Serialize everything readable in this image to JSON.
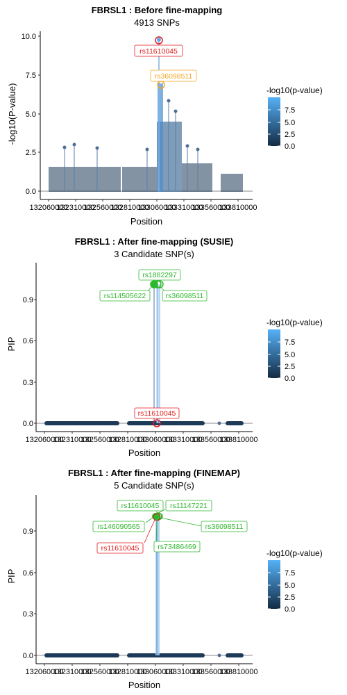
{
  "chart_data": [
    {
      "type": "scatter",
      "title": "FBRSL1 : Before fine-mapping",
      "subtitle": "4913 SNPs",
      "xlabel": "Position",
      "ylabel": "-log10(P-value)",
      "xticks": [
        "132060000",
        "132310000",
        "132560000",
        "132810000",
        "133060000",
        "133310000",
        "133560000",
        "133810000"
      ],
      "yticks": [
        "0.0",
        "2.5",
        "5.0",
        "7.5",
        "10.0"
      ],
      "ylim": [
        -0.3,
        10.4
      ],
      "legend": {
        "title": "-log10(p-value)",
        "ticks": [
          "0.0",
          "2.5",
          "5.0",
          "7.5"
        ],
        "position": "right",
        "colors": [
          "#132B43",
          "#56B1F7"
        ]
      },
      "highlight_points": [
        {
          "name": "rs11610045",
          "x": 133060000,
          "y": 9.8,
          "color": "#e31a1c"
        },
        {
          "name": "rs36098511",
          "x": 133065000,
          "y": 6.9,
          "color": "#f5a623"
        }
      ]
    },
    {
      "type": "scatter",
      "title": "FBRSL1 : After fine-mapping (SUSIE)",
      "subtitle": "3 Candidate SNP(s)",
      "xlabel": "Position",
      "ylabel": "PIP",
      "xticks": [
        "132060000",
        "132310000",
        "132560000",
        "132810000",
        "133060000",
        "133310000",
        "133560000",
        "133810000"
      ],
      "yticks": [
        "0.0",
        "0.3",
        "0.6",
        "0.9"
      ],
      "ylim": [
        -0.04,
        1.16
      ],
      "legend": {
        "title": "-log10(p-value)",
        "ticks": [
          "0.0",
          "2.5",
          "5.0",
          "7.5"
        ],
        "position": "right",
        "colors": [
          "#132B43",
          "#56B1F7"
        ]
      },
      "candidate_points": [
        {
          "name": "rs114505622",
          "x": 133050000,
          "y": 1.0,
          "color": "#2db82d"
        },
        {
          "name": "rs1882297",
          "x": 133060000,
          "y": 1.0,
          "color": "#2db82d"
        },
        {
          "name": "rs36098511",
          "x": 133065000,
          "y": 1.0,
          "color": "#2db82d"
        }
      ],
      "highlight_points": [
        {
          "name": "rs11610045",
          "x": 133060000,
          "y": 0.0,
          "color": "#e31a1c"
        }
      ]
    },
    {
      "type": "scatter",
      "title": "FBRSL1 : After fine-mapping (FINEMAP)",
      "subtitle": "5 Candidate SNP(s)",
      "xlabel": "Position",
      "ylabel": "PIP",
      "xticks": [
        "132060000",
        "132310000",
        "132560000",
        "132810000",
        "133060000",
        "133310000",
        "133560000",
        "133810000"
      ],
      "yticks": [
        "0.0",
        "0.3",
        "0.6",
        "0.9"
      ],
      "ylim": [
        -0.04,
        1.16
      ],
      "legend": {
        "title": "-log10(p-value)",
        "ticks": [
          "0.0",
          "2.5",
          "5.0",
          "7.5"
        ],
        "position": "right",
        "colors": [
          "#132B43",
          "#56B1F7"
        ]
      },
      "candidate_points": [
        {
          "name": "rs11610045",
          "x": 133060000,
          "y": 1.0,
          "color": "#2db82d"
        },
        {
          "name": "rs11147221",
          "x": 133062000,
          "y": 1.0,
          "color": "#2db82d"
        },
        {
          "name": "rs146090565",
          "x": 133058000,
          "y": 1.0,
          "color": "#2db82d"
        },
        {
          "name": "rs36098511",
          "x": 133065000,
          "y": 1.0,
          "color": "#2db82d"
        },
        {
          "name": "rs73486469",
          "x": 133063000,
          "y": 1.0,
          "color": "#2db82d"
        }
      ],
      "highlight_points": [
        {
          "name": "rs11610045",
          "x": 133060000,
          "y": 1.0,
          "color": "#e31a1c"
        }
      ]
    }
  ]
}
